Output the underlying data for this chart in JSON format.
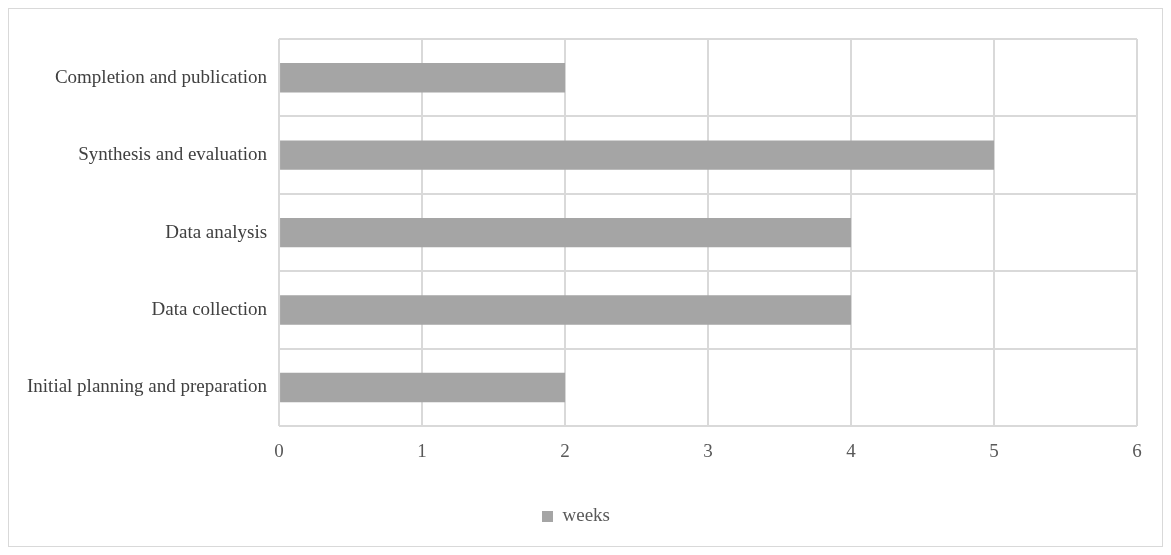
{
  "chart_data": {
    "type": "bar",
    "orientation": "horizontal",
    "categories": [
      "Completion and publication",
      "Synthesis and evaluation",
      "Data analysis",
      "Data collection",
      "Initial planning and preparation"
    ],
    "series": [
      {
        "name": "weeks",
        "color": "#a5a5a5",
        "values": [
          2,
          5,
          4,
          4,
          2
        ]
      }
    ],
    "xlim": [
      0,
      6
    ],
    "xticks": [
      0,
      1,
      2,
      3,
      4,
      5,
      6
    ],
    "grid": true,
    "legend": "bottom"
  }
}
